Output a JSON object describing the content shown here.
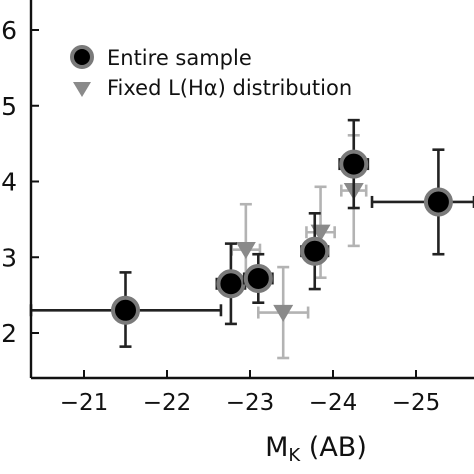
{
  "chart_data": {
    "type": "scatter",
    "title": "",
    "xlabel_main": "M",
    "xlabel_sub": "K",
    "xlabel_suffix": " (AB)",
    "ylabel": "",
    "xlim": [
      -20.35,
      -25.6
    ],
    "ylim": [
      1.45,
      6.15
    ],
    "x_ticks": [
      -21,
      -22,
      -23,
      -24,
      -25
    ],
    "x_tick_labels": [
      "−21",
      "−22",
      "−23",
      "−24",
      "−25"
    ],
    "y_ticks": [
      2,
      3,
      4,
      5,
      6
    ],
    "y_tick_labels": [
      "2",
      "3",
      "4",
      "5",
      "6"
    ],
    "legend_position": "top-left",
    "series": [
      {
        "name": "Entire sample",
        "marker": "circle",
        "color": "#000000",
        "edge_color": "#7a7a7a",
        "error_color": "#222222",
        "points": [
          {
            "x": -21.5,
            "y": 2.3,
            "xerr": [
              1.15,
              1.15
            ],
            "yerr": [
              0.48,
              0.5
            ]
          },
          {
            "x": -22.77,
            "y": 2.65,
            "xerr": [
              0.17,
              0.17
            ],
            "yerr": [
              0.53,
              0.53
            ]
          },
          {
            "x": -23.1,
            "y": 2.72,
            "xerr": [
              0.17,
              0.17
            ],
            "yerr": [
              0.32,
              0.32
            ]
          },
          {
            "x": -23.78,
            "y": 3.08,
            "xerr": [
              0.16,
              0.16
            ],
            "yerr": [
              0.5,
              0.5
            ]
          },
          {
            "x": -24.25,
            "y": 4.23,
            "xerr": [
              0.17,
              0.17
            ],
            "yerr": [
              0.58,
              0.58
            ]
          },
          {
            "x": -25.27,
            "y": 3.73,
            "xerr": [
              0.8,
              0.8
            ],
            "yerr": [
              0.69,
              0.69
            ]
          }
        ]
      },
      {
        "name": "Fixed L(Hα) distribution",
        "marker": "triangle-down",
        "color": "#8a8a8a",
        "edge_color": "#8a8a8a",
        "error_color": "#b3b3b3",
        "points": [
          {
            "x": -22.95,
            "y": 3.1,
            "xerr": [
              0.17,
              0.17
            ],
            "yerr": [
              0.4,
              0.6
            ]
          },
          {
            "x": -23.4,
            "y": 2.27,
            "xerr": [
              0.3,
              0.3
            ],
            "yerr": [
              0.6,
              0.6
            ]
          },
          {
            "x": -23.85,
            "y": 3.33,
            "xerr": [
              0.17,
              0.17
            ],
            "yerr": [
              0.6,
              0.6
            ]
          },
          {
            "x": -24.25,
            "y": 3.88,
            "xerr": [
              0.15,
              0.15
            ],
            "yerr": [
              0.73,
              0.73
            ]
          }
        ]
      }
    ],
    "grid": false
  }
}
